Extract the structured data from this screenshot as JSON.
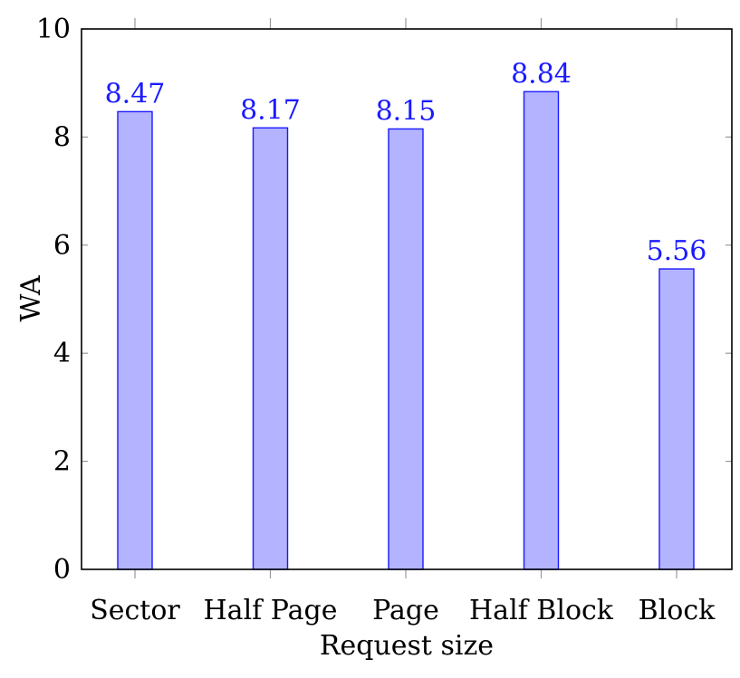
{
  "chart_data": {
    "type": "bar",
    "categories": [
      "Sector",
      "Half Page",
      "Page",
      "Half Block",
      "Block"
    ],
    "values": [
      8.47,
      8.17,
      8.15,
      8.84,
      5.56
    ],
    "data_labels": [
      "8.47",
      "8.17",
      "8.15",
      "8.84",
      "5.56"
    ],
    "xlabel": "Request size",
    "ylabel": "WA",
    "ylim": [
      0,
      10
    ],
    "yticks": [
      0,
      2,
      4,
      6,
      8,
      10
    ],
    "grid": false,
    "colors": {
      "bar_fill": "#b3b3ff",
      "bar_stroke": "#1a1aff",
      "data_label": "#1a1aff",
      "axis": "#000000",
      "tick": "#999999"
    }
  }
}
